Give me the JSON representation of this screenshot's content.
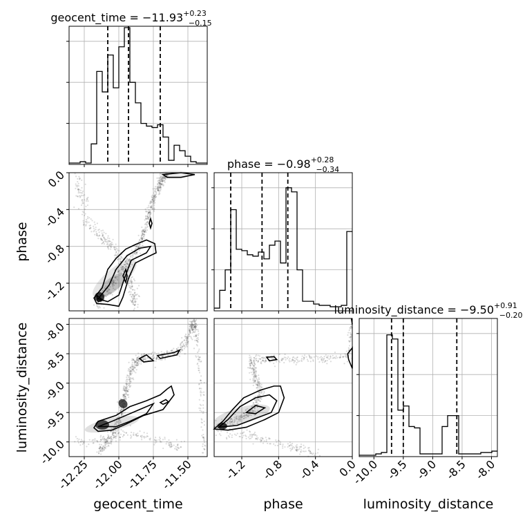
{
  "chart_data": {
    "type": "corner",
    "parameters": [
      "geocent_time",
      "phase",
      "luminosity_distance"
    ],
    "titles": [
      {
        "param": "geocent_time",
        "median": "-11.93",
        "plus": "0.23",
        "minus": "0.15"
      },
      {
        "param": "phase",
        "median": "-0.98",
        "plus": "0.28",
        "minus": "0.34"
      },
      {
        "param": "luminosity_distance",
        "median": "-9.50",
        "plus": "0.91",
        "minus": "0.20"
      }
    ],
    "ranges": {
      "geocent_time": [
        -12.36,
        -11.36
      ],
      "phase": [
        -1.5,
        0.0
      ],
      "luminosity_distance": [
        -10.25,
        -7.9
      ]
    },
    "ticks": {
      "geocent_time": [
        "-12.25",
        "-12.00",
        "-11.75",
        "-11.50"
      ],
      "phase": [
        "-1.2",
        "-0.8",
        "-0.4",
        "0.0"
      ],
      "phase_y": [
        "0.0",
        "-0.4",
        "-0.8",
        "-1.2"
      ],
      "luminosity_distance": [
        "-10.0",
        "-9.5",
        "-9.0",
        "-8.5",
        "-8.0"
      ],
      "luminosity_distance_y": [
        "-8.0",
        "-8.5",
        "-9.0",
        "-9.5",
        "-10.0"
      ]
    },
    "quantiles": {
      "geocent_time": [
        -12.08,
        -11.93,
        -11.7
      ],
      "phase": [
        -1.32,
        -0.98,
        -0.7
      ],
      "luminosity_distance": [
        -9.7,
        -9.5,
        -8.59
      ]
    },
    "histograms": {
      "geocent_time": {
        "edges_range": [
          -12.36,
          -11.36
        ],
        "counts": [
          0.01,
          0.01,
          0.02,
          0.01,
          0.15,
          0.68,
          0.53,
          0.8,
          0.56,
          0.86,
          1.0,
          0.6,
          0.45,
          0.3,
          0.28,
          0.27,
          0.29,
          0.2,
          0.03,
          0.14,
          0.1,
          0.06,
          0.02,
          0.01,
          0.01
        ]
      },
      "phase": {
        "edges_range": [
          -1.5,
          0.0
        ],
        "counts": [
          0.02,
          0.15,
          0.3,
          0.74,
          0.45,
          0.44,
          0.41,
          0.4,
          0.43,
          0.38,
          0.48,
          0.51,
          0.35,
          0.9,
          0.87,
          0.3,
          0.07,
          0.07,
          0.05,
          0.04,
          0.04,
          0.03,
          0.03,
          0.04,
          0.58
        ]
      },
      "luminosity_distance": {
        "edges_range": [
          -10.25,
          -7.9
        ],
        "counts": [
          0.01,
          0.01,
          0.01,
          0.02,
          0.03,
          0.89,
          0.86,
          0.34,
          0.37,
          0.22,
          0.21,
          0.02,
          0.02,
          0.02,
          0.02,
          0.22,
          0.3,
          0.3,
          0.02,
          0.02,
          0.02,
          0.02,
          0.03,
          0.03,
          0.04
        ]
      }
    },
    "axis_labels": {
      "x": [
        "geocent_time",
        "phase",
        "luminosity_distance"
      ],
      "y": [
        "phase",
        "luminosity_distance"
      ]
    },
    "grid": true
  }
}
